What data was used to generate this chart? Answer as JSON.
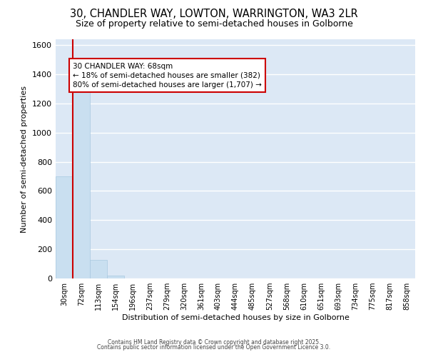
{
  "title_line1": "30, CHANDLER WAY, LOWTON, WARRINGTON, WA3 2LR",
  "title_line2": "Size of property relative to semi-detached houses in Golborne",
  "xlabel": "Distribution of semi-detached houses by size in Golborne",
  "ylabel": "Number of semi-detached properties",
  "categories": [
    "30sqm",
    "72sqm",
    "113sqm",
    "154sqm",
    "196sqm",
    "237sqm",
    "279sqm",
    "320sqm",
    "361sqm",
    "403sqm",
    "444sqm",
    "485sqm",
    "527sqm",
    "568sqm",
    "610sqm",
    "651sqm",
    "693sqm",
    "734sqm",
    "775sqm",
    "817sqm",
    "858sqm"
  ],
  "values": [
    700,
    1310,
    125,
    20,
    0,
    0,
    0,
    0,
    0,
    0,
    0,
    0,
    0,
    0,
    0,
    0,
    0,
    0,
    0,
    0,
    0
  ],
  "bar_color": "#c9dff0",
  "bar_edge_color": "#a8c8e0",
  "annotation_line1": "30 CHANDLER WAY: 68sqm",
  "annotation_line2": "← 18% of semi-detached houses are smaller (382)",
  "annotation_line3": "80% of semi-detached houses are larger (1,707) →",
  "annotation_box_color": "#ffffff",
  "annotation_border_color": "#cc0000",
  "red_line_color": "#cc0000",
  "ylim": [
    0,
    1640
  ],
  "yticks": [
    0,
    200,
    400,
    600,
    800,
    1000,
    1200,
    1400,
    1600
  ],
  "background_color": "#dce8f5",
  "grid_color": "#ffffff",
  "footer_line1": "Contains HM Land Registry data © Crown copyright and database right 2025.",
  "footer_line2": "Contains public sector information licensed under the Open Government Licence 3.0.",
  "title_fontsize": 10.5,
  "subtitle_fontsize": 9,
  "axis_label_fontsize": 8,
  "tick_fontsize": 7,
  "annotation_fontsize": 7.5
}
